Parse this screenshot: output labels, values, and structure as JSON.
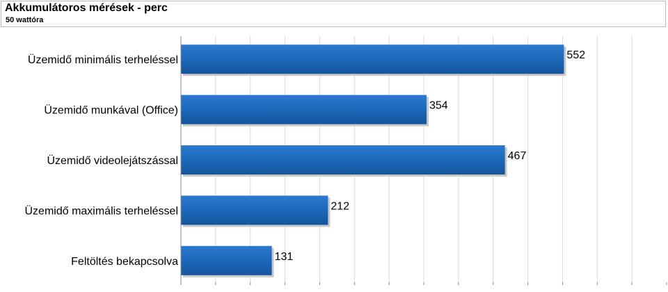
{
  "header": {
    "title": "Akkumulátoros mérések - perc",
    "subtitle": "50 wattóra"
  },
  "chart_data": {
    "type": "bar",
    "orientation": "horizontal",
    "title": "Akkumulátoros mérések - perc",
    "subtitle": "50 wattóra",
    "categories": [
      "Üzemidő minimális terheléssel",
      "Üzemidő munkával (Office)",
      "Üzemidő videolejátszással",
      "Üzemidő maximális terheléssel",
      "Feltöltés bekapcsolva"
    ],
    "values": [
      552,
      354,
      467,
      212,
      131
    ],
    "data_labels": [
      "552",
      "354",
      "467",
      "212",
      "131"
    ],
    "xlim": [
      0,
      700
    ],
    "grid": true,
    "bar_color": "#1b68b9"
  }
}
